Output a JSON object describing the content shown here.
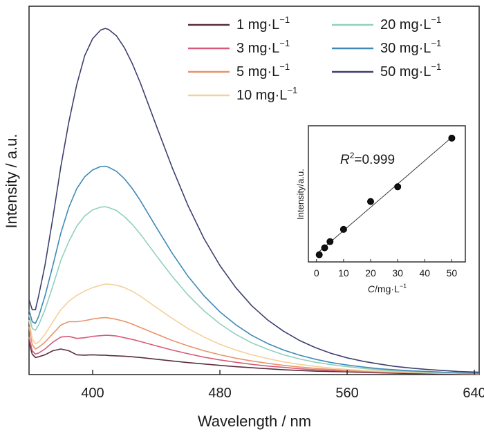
{
  "chart_data": [
    {
      "type": "line",
      "xlabel": "Wavelength / nm",
      "ylabel": "Intensity / a.u.",
      "xlim": [
        360,
        643
      ],
      "ylim": [
        0,
        1.08
      ],
      "xticks": [
        400,
        480,
        560,
        640
      ],
      "y_ticks_labeled": false,
      "grid": false,
      "legend_position": "top-right",
      "x": [
        360,
        362,
        364,
        366,
        370,
        375,
        380,
        385,
        390,
        395,
        400,
        405,
        408,
        410,
        415,
        420,
        425,
        430,
        440,
        450,
        460,
        470,
        480,
        490,
        500,
        510,
        520,
        530,
        540,
        550,
        560,
        570,
        580,
        590,
        600,
        610,
        620,
        630,
        643
      ],
      "series": [
        {
          "name": "1 mg·L",
          "name_superscript": "−1",
          "color": "#5a2d3c",
          "values": [
            0.095,
            0.06,
            0.05,
            0.052,
            0.058,
            0.07,
            0.075,
            0.07,
            0.058,
            0.057,
            0.058,
            0.057,
            0.057,
            0.056,
            0.055,
            0.054,
            0.052,
            0.05,
            0.045,
            0.04,
            0.035,
            0.031,
            0.027,
            0.023,
            0.02,
            0.017,
            0.014,
            0.012,
            0.01,
            0.009,
            0.008,
            0.006,
            0.005,
            0.004,
            0.003,
            0.003,
            0.002,
            0.002,
            0.001
          ]
        },
        {
          "name": "3 mg·L",
          "name_superscript": "−1",
          "color": "#d85a78",
          "values": [
            0.11,
            0.07,
            0.06,
            0.063,
            0.075,
            0.095,
            0.11,
            0.112,
            0.106,
            0.108,
            0.112,
            0.114,
            0.115,
            0.115,
            0.113,
            0.108,
            0.103,
            0.097,
            0.084,
            0.072,
            0.061,
            0.051,
            0.043,
            0.036,
            0.03,
            0.025,
            0.021,
            0.017,
            0.014,
            0.012,
            0.01,
            0.008,
            0.007,
            0.006,
            0.005,
            0.004,
            0.003,
            0.003,
            0.002
          ]
        },
        {
          "name": "5 mg·L",
          "name_superscript": "−1",
          "color": "#e8936a",
          "values": [
            0.14,
            0.088,
            0.075,
            0.08,
            0.095,
            0.12,
            0.145,
            0.155,
            0.155,
            0.158,
            0.163,
            0.166,
            0.167,
            0.166,
            0.162,
            0.156,
            0.148,
            0.138,
            0.119,
            0.1,
            0.084,
            0.07,
            0.058,
            0.048,
            0.04,
            0.033,
            0.027,
            0.022,
            0.018,
            0.015,
            0.012,
            0.01,
            0.008,
            0.007,
            0.006,
            0.005,
            0.004,
            0.003,
            0.002
          ]
        },
        {
          "name": "10 mg·L",
          "name_superscript": "−1",
          "color": "#f5d09a",
          "values": [
            0.16,
            0.105,
            0.09,
            0.095,
            0.118,
            0.155,
            0.19,
            0.215,
            0.232,
            0.245,
            0.255,
            0.262,
            0.265,
            0.265,
            0.262,
            0.255,
            0.244,
            0.23,
            0.197,
            0.165,
            0.135,
            0.11,
            0.089,
            0.072,
            0.058,
            0.047,
            0.037,
            0.03,
            0.024,
            0.019,
            0.015,
            0.012,
            0.01,
            0.008,
            0.006,
            0.005,
            0.004,
            0.003,
            0.002
          ]
        },
        {
          "name": "20 mg·L",
          "name_superscript": "−1",
          "color": "#90d0bf",
          "values": [
            0.175,
            0.135,
            0.13,
            0.145,
            0.19,
            0.26,
            0.335,
            0.39,
            0.435,
            0.465,
            0.483,
            0.491,
            0.492,
            0.49,
            0.481,
            0.463,
            0.44,
            0.412,
            0.349,
            0.288,
            0.233,
            0.187,
            0.149,
            0.118,
            0.093,
            0.074,
            0.058,
            0.046,
            0.036,
            0.029,
            0.023,
            0.018,
            0.014,
            0.011,
            0.009,
            0.007,
            0.006,
            0.004,
            0.003
          ]
        },
        {
          "name": "30 mg·L",
          "name_superscript": "−1",
          "color": "#3e89b7",
          "values": [
            0.19,
            0.155,
            0.15,
            0.17,
            0.23,
            0.32,
            0.415,
            0.49,
            0.545,
            0.58,
            0.6,
            0.61,
            0.611,
            0.608,
            0.596,
            0.574,
            0.545,
            0.51,
            0.432,
            0.356,
            0.288,
            0.231,
            0.184,
            0.146,
            0.115,
            0.091,
            0.072,
            0.057,
            0.045,
            0.035,
            0.028,
            0.022,
            0.017,
            0.014,
            0.011,
            0.009,
            0.007,
            0.005,
            0.004
          ]
        },
        {
          "name": "50 mg·L",
          "name_superscript": "−1",
          "color": "#3d3f6e",
          "values": [
            0.22,
            0.19,
            0.19,
            0.23,
            0.32,
            0.46,
            0.61,
            0.74,
            0.85,
            0.935,
            0.985,
            1.01,
            1.015,
            1.012,
            0.993,
            0.958,
            0.911,
            0.855,
            0.73,
            0.607,
            0.495,
            0.399,
            0.32,
            0.255,
            0.202,
            0.16,
            0.127,
            0.1,
            0.079,
            0.062,
            0.049,
            0.039,
            0.031,
            0.024,
            0.019,
            0.015,
            0.012,
            0.009,
            0.007
          ]
        }
      ]
    },
    {
      "type": "scatter",
      "title": "R2=0.999",
      "annotation": {
        "symbol": "R",
        "superscript": "2",
        "text": "=0.999"
      },
      "xlabel": "C/mg·L",
      "xlabel_parts": {
        "italic": "C",
        "rest": "/mg·L",
        "superscript": "−1"
      },
      "ylabel": "Intensity/a.u.",
      "xlim": [
        -3,
        55
      ],
      "ylim": [
        0,
        1.1
      ],
      "xticks": [
        0,
        10,
        20,
        30,
        40,
        50
      ],
      "y_ticks_labeled": false,
      "fit_line": true,
      "x": [
        1,
        3,
        5,
        10,
        20,
        30,
        50
      ],
      "y": [
        0.058,
        0.114,
        0.164,
        0.263,
        0.488,
        0.607,
        1.0
      ]
    }
  ]
}
